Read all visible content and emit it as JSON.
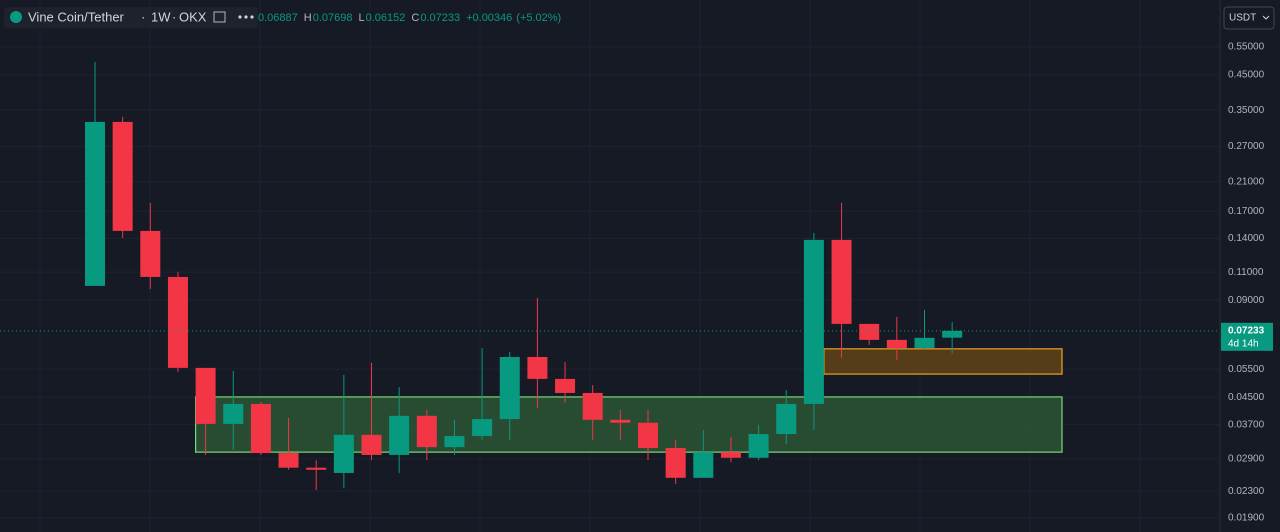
{
  "chart_data": {
    "type": "candlestick",
    "title": "Vine Coin/Tether",
    "separator": "·",
    "interval": "1W",
    "exchange": "OKX",
    "ohlc_labels": [
      "H",
      "L",
      "C"
    ],
    "open": [
      0.0997,
      0.3218,
      0.1477,
      0.1063,
      0.0555,
      0.0372,
      0.0429,
      0.0302,
      0.0272,
      0.0262,
      0.0344,
      0.0298,
      0.0394,
      0.0315,
      0.0341,
      0.0385,
      0.06,
      0.0513,
      0.0464,
      0.0383,
      0.0375,
      0.0313,
      0.0253,
      0.0304,
      0.0292,
      0.0346,
      0.0429,
      0.1385,
      0.076,
      0.0678,
      0.064,
      0.06887
    ],
    "high": [
      0.494,
      0.3336,
      0.1804,
      0.1102,
      0.0555,
      0.0543,
      0.0435,
      0.0388,
      0.0287,
      0.0528,
      0.0575,
      0.0484,
      0.0411,
      0.0383,
      0.064,
      0.0622,
      0.0915,
      0.0579,
      0.0491,
      0.0411,
      0.0411,
      0.0332,
      0.0356,
      0.0339,
      0.0369,
      0.0474,
      0.1456,
      0.1804,
      0.076,
      0.0799,
      0.084,
      0.07698
    ],
    "low": [
      0.0997,
      0.1405,
      0.0976,
      0.0539,
      0.0298,
      0.0309,
      0.0298,
      0.0268,
      0.0232,
      0.0235,
      0.0287,
      0.0262,
      0.0287,
      0.0298,
      0.0332,
      0.0332,
      0.0417,
      0.0432,
      0.0332,
      0.0332,
      0.0287,
      0.0242,
      0.0253,
      0.0283,
      0.0287,
      0.0322,
      0.0356,
      0.0596,
      0.0654,
      0.0587,
      0.0631,
      0.06152
    ],
    "close": [
      0.3218,
      0.1477,
      0.1063,
      0.0555,
      0.0372,
      0.0429,
      0.0302,
      0.0272,
      0.0268,
      0.0344,
      0.0298,
      0.0394,
      0.0315,
      0.0341,
      0.0385,
      0.06,
      0.0513,
      0.0464,
      0.0383,
      0.0375,
      0.0313,
      0.0253,
      0.0304,
      0.0292,
      0.0346,
      0.0429,
      0.1385,
      0.076,
      0.0678,
      0.064,
      0.0688,
      0.07233
    ],
    "up_color": "#089981",
    "down_color": "#f23645",
    "change": {
      "value": 0.00346,
      "label": "+0.00346"
    },
    "change_pct": {
      "value": 5.02,
      "label": "(+5.02%)"
    },
    "zones": [
      {
        "low": 0.0304,
        "high": 0.0451,
        "fill": "#2f5d36",
        "stroke": "#7bd67a"
      },
      {
        "low": 0.0531,
        "high": 0.0636,
        "fill": "#6b4a17",
        "stroke": "#f0a020"
      }
    ],
    "log_scale": true,
    "grid": true,
    "currency": "USDT",
    "countdown": "4d 14h",
    "ylim": [
      0.01718,
      0.769
    ],
    "yticks": [
      {
        "value": 0.55,
        "label": "0.55000"
      },
      {
        "value": 0.45,
        "label": "0.45000"
      },
      {
        "value": 0.35,
        "label": "0.35000"
      },
      {
        "value": 0.27,
        "label": "0.27000"
      },
      {
        "value": 0.21,
        "label": "0.21000"
      },
      {
        "value": 0.17,
        "label": "0.17000"
      },
      {
        "value": 0.14,
        "label": "0.14000"
      },
      {
        "value": 0.11,
        "label": "0.11000"
      },
      {
        "value": 0.09,
        "label": "0.09000"
      },
      {
        "value": 0.055,
        "label": "0.05500"
      },
      {
        "value": 0.045,
        "label": "0.04500"
      },
      {
        "value": 0.037,
        "label": "0.03700"
      },
      {
        "value": 0.029,
        "label": "0.02900"
      },
      {
        "value": 0.023,
        "label": "0.02300"
      },
      {
        "value": 0.019,
        "label": "0.01900"
      }
    ]
  }
}
